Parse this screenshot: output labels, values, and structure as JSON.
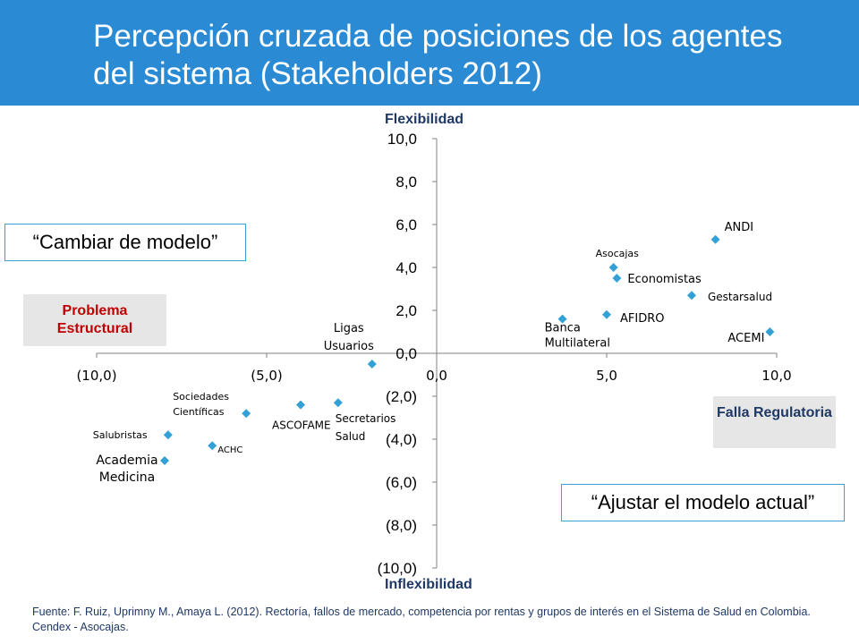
{
  "title": "Percepción cruzada de posiciones de los agentes del sistema (Stakeholders 2012)",
  "labels": {
    "y_top": "Flexibilidad",
    "y_bottom": "Inflexibilidad",
    "cambiar": "“Cambiar de modelo”",
    "ajustar": "“Ajustar el modelo actual”",
    "problema": "Problema Estructural",
    "falla": "Falla Regulatoria"
  },
  "source": "Fuente: F. Ruiz, Uprimny M., Amaya L. (2012). Rectoría, fallos de mercado, competencia por rentas y grupos de interés en el Sistema de Salud en Colombia. Cendex - Asocajas.",
  "colors": {
    "header": "#2a8ad4",
    "marker": "#33a1d6",
    "axis": "#808080",
    "axis_label": "#1f3864",
    "problema_text": "#c00000",
    "box_border": "#3aa0d8"
  },
  "chart_data": {
    "type": "scatter",
    "xlim": [
      -10,
      10
    ],
    "ylim": [
      -10,
      10
    ],
    "x_ticks": [
      "(10,0)",
      "(5,0)",
      "0,0",
      "5,0",
      "10,0"
    ],
    "y_ticks": [
      "10,0",
      "8,0",
      "6,0",
      "4,0",
      "2,0",
      "0,0",
      "(2,0)",
      "(4,0)",
      "(6,0)",
      "(8,0)",
      "(10,0)"
    ],
    "grid": false,
    "marker": "diamond",
    "points": [
      {
        "name": "ANDI",
        "x": 8.2,
        "y": 5.3
      },
      {
        "name": "Asocajas",
        "x": 5.2,
        "y": 4.0
      },
      {
        "name": "Economistas",
        "x": 5.3,
        "y": 3.5
      },
      {
        "name": "Gestarsalud",
        "x": 7.5,
        "y": 2.7
      },
      {
        "name": "AFIDRO",
        "x": 5.0,
        "y": 1.8
      },
      {
        "name": "Banca Multilateral",
        "x": 3.7,
        "y": 1.6
      },
      {
        "name": "ACEMI",
        "x": 9.8,
        "y": 1.0
      },
      {
        "name": "Ligas Usuarios",
        "x": -1.9,
        "y": -0.5
      },
      {
        "name": "Secretarios Salud",
        "x": -2.9,
        "y": -2.3
      },
      {
        "name": "ASCOFAME",
        "x": -4.0,
        "y": -2.4
      },
      {
        "name": "Sociedades Científicas",
        "x": -5.6,
        "y": -2.8
      },
      {
        "name": "Salubristas",
        "x": -7.9,
        "y": -3.8
      },
      {
        "name": "ACHC",
        "x": -6.6,
        "y": -4.3
      },
      {
        "name": "Academia Medicina",
        "x": -8.0,
        "y": -5.0
      }
    ]
  }
}
